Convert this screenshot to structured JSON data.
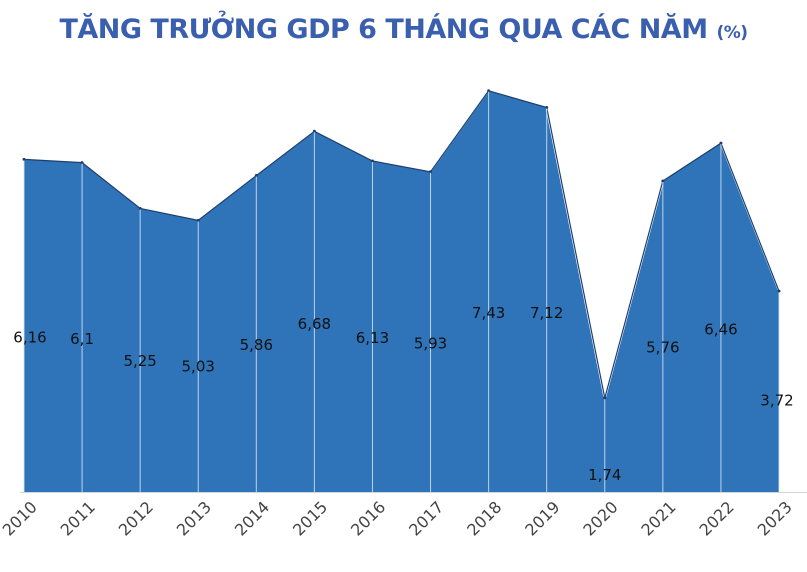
{
  "chart_data": {
    "type": "area",
    "title": "TĂNG TRƯỞNG GDP 6 THÁNG QUA CÁC NĂM",
    "unit": "(%)",
    "xlabel": "",
    "ylabel": "",
    "categories": [
      "2010",
      "2011",
      "2012",
      "2013",
      "2014",
      "2015",
      "2016",
      "2017",
      "2018",
      "2019",
      "2020",
      "2021",
      "2022",
      "2023"
    ],
    "values": [
      6.16,
      6.1,
      5.25,
      5.03,
      5.86,
      6.68,
      6.13,
      5.93,
      7.43,
      7.12,
      1.74,
      5.76,
      6.46,
      3.72
    ],
    "value_labels": [
      "6,16",
      "6,1",
      "5,25",
      "5,03",
      "5,86",
      "6,68",
      "6,13",
      "5,93",
      "7,43",
      "7,12",
      "1,74",
      "5,76",
      "6,46",
      "3,72"
    ],
    "ylim": [
      0,
      7.5
    ],
    "grid": false,
    "legend": "none",
    "colors": {
      "fill": "#2f74b8",
      "outline": "#1e3f6e",
      "title": "#3a5fae",
      "drop_line": "#d6e4f3"
    }
  }
}
